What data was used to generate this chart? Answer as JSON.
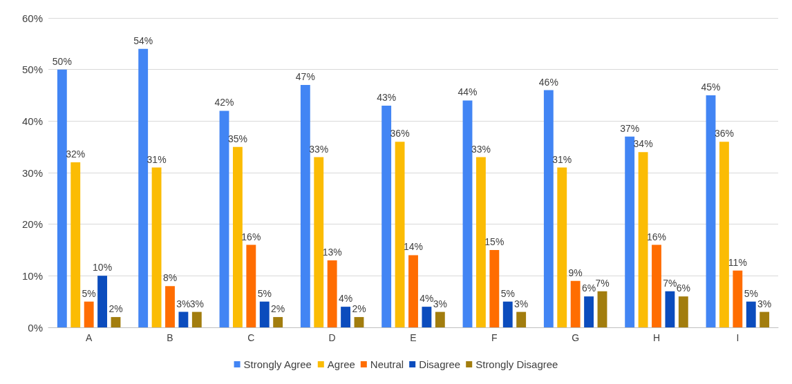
{
  "chart_data": {
    "type": "bar",
    "categories": [
      "A",
      "B",
      "C",
      "D",
      "E",
      "F",
      "G",
      "H",
      "I"
    ],
    "series": [
      {
        "name": "Strongly Agree",
        "color": "#4285f4",
        "values": [
          50,
          54,
          42,
          47,
          43,
          44,
          46,
          37,
          45
        ],
        "value_labels": [
          "50%",
          "54%",
          "42%",
          "47%",
          "43%",
          "44%",
          "46%",
          "37%",
          "45%"
        ]
      },
      {
        "name": "Agree",
        "color": "#fbbc04",
        "values": [
          32,
          31,
          35,
          33,
          36,
          33,
          31,
          34,
          36
        ],
        "value_labels": [
          "32%",
          "31%",
          "35%",
          "33%",
          "36%",
          "33%",
          "31%",
          "34%",
          "36%"
        ]
      },
      {
        "name": "Neutral",
        "color": "#ff6d01",
        "values": [
          5,
          8,
          16,
          13,
          14,
          15,
          9,
          16,
          11
        ],
        "value_labels": [
          "5%",
          "8%",
          "16%",
          "13%",
          "14%",
          "15%",
          "9%",
          "16%",
          "11%"
        ]
      },
      {
        "name": "Disagree",
        "color": "#0b4cbd",
        "values": [
          10,
          3,
          5,
          4,
          4,
          5,
          6,
          7,
          5
        ],
        "value_labels": [
          "10%",
          "3%",
          "5%",
          "4%",
          "4%",
          "5%",
          "6%",
          "7%",
          "5%"
        ]
      },
      {
        "name": "Strongly Disagree",
        "color": "#a27d0e",
        "values": [
          2,
          3,
          2,
          2,
          3,
          3,
          7,
          6,
          3
        ],
        "value_labels": [
          "2%",
          "3%",
          "2%",
          "2%",
          "3%",
          "3%",
          "7%",
          "6%",
          "3%"
        ]
      }
    ],
    "ylim": [
      0,
      60
    ],
    "yticks": [
      {
        "value": 0,
        "label": "0%"
      },
      {
        "value": 10,
        "label": "10%"
      },
      {
        "value": 20,
        "label": "20%"
      },
      {
        "value": 30,
        "label": "30%"
      },
      {
        "value": 40,
        "label": "40%"
      },
      {
        "value": 50,
        "label": "50%"
      },
      {
        "value": 60,
        "label": "60%"
      }
    ],
    "grid": "y",
    "legend": "bottom"
  }
}
